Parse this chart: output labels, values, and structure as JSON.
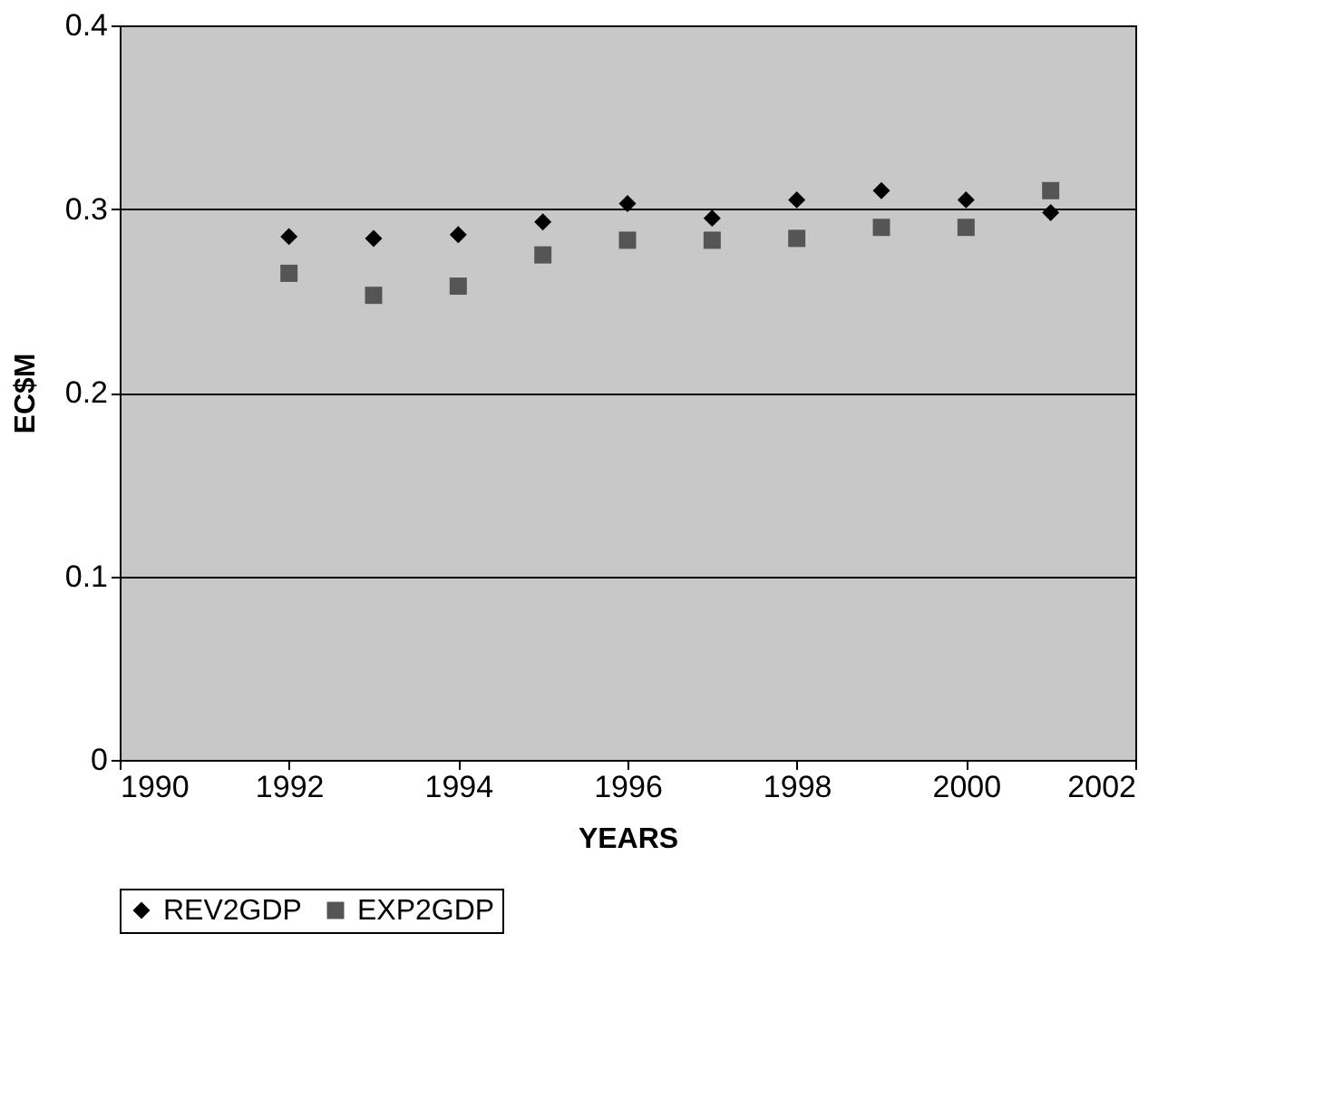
{
  "chart_data": {
    "type": "scatter",
    "xlabel": "YEARS",
    "ylabel": "EC$M",
    "x": [
      1992,
      1993,
      1994,
      1995,
      1996,
      1997,
      1998,
      1999,
      2000,
      2001
    ],
    "series": [
      {
        "name": "REV2GDP",
        "color": "#000000",
        "marker": "diamond",
        "values": [
          0.285,
          0.284,
          0.286,
          0.293,
          0.303,
          0.295,
          0.305,
          0.31,
          0.305,
          0.298
        ]
      },
      {
        "name": "EXP2GDP",
        "color": "#555555",
        "marker": "square",
        "values": [
          0.265,
          0.253,
          0.258,
          0.275,
          0.283,
          0.283,
          0.284,
          0.29,
          0.29,
          0.31
        ]
      }
    ],
    "xlim": [
      1990,
      2002
    ],
    "xticks": [
      1990,
      1992,
      1994,
      1996,
      1998,
      2000,
      2002
    ],
    "ylim": [
      0,
      0.4
    ],
    "yticks": [
      0,
      0.1,
      0.2,
      0.3,
      0.4
    ],
    "grid": "y",
    "legend": "bottom"
  }
}
